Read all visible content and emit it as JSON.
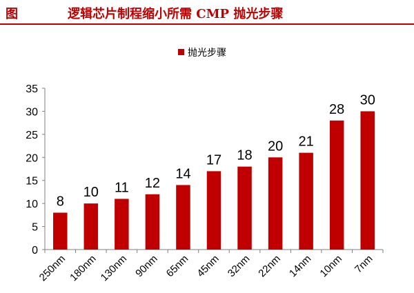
{
  "figure_label": "图",
  "title": "逻辑芯片制程缩小所需 CMP 抛光步骤",
  "colors": {
    "bar": "#c00000",
    "header_line": "#c00000",
    "axis": "#7f7f7f"
  },
  "chart_data": {
    "type": "bar",
    "categories": [
      "250nm",
      "180nm",
      "130nm",
      "90nm",
      "65nm",
      "45nm",
      "32nm",
      "22nm",
      "14nm",
      "10nm",
      "7nm"
    ],
    "series": [
      {
        "name": "抛光步骤",
        "values": [
          8,
          10,
          11,
          12,
          14,
          17,
          18,
          20,
          21,
          28,
          30
        ]
      }
    ],
    "ylim": [
      0,
      35
    ],
    "yticks": [
      0,
      5,
      10,
      15,
      20,
      25,
      30,
      35
    ],
    "grid": false,
    "legend": "top"
  }
}
